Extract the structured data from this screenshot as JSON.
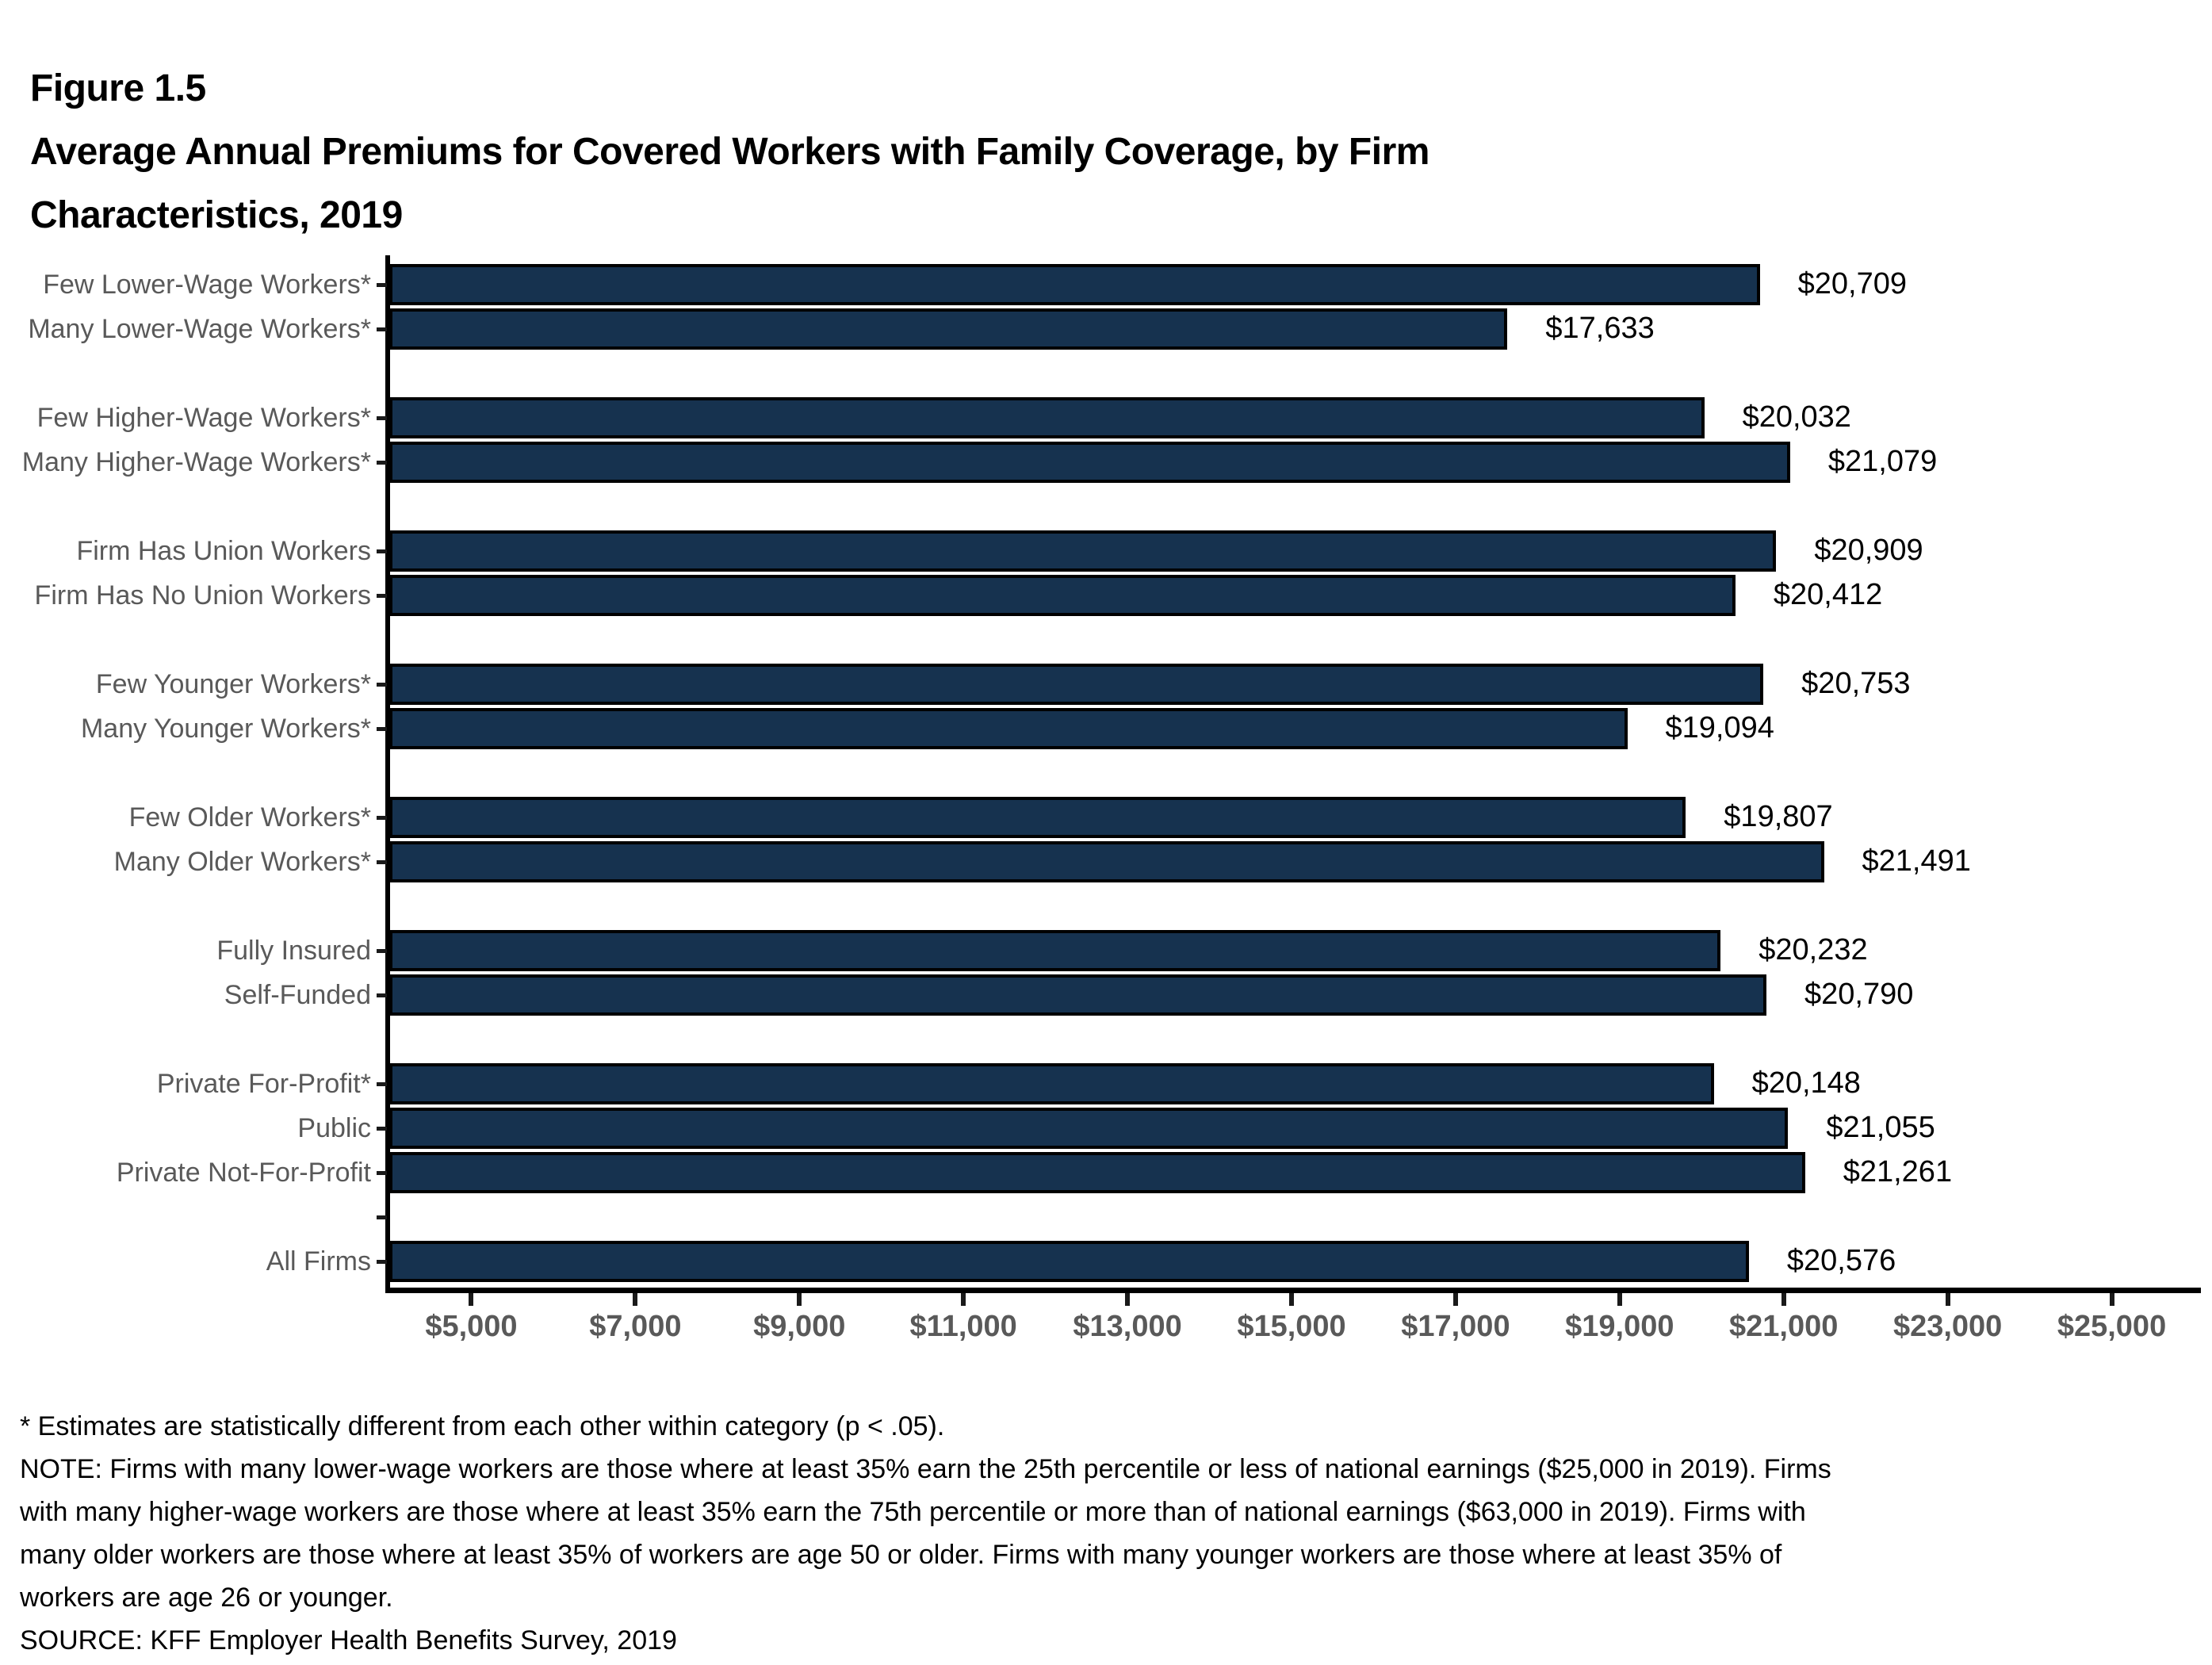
{
  "figure": {
    "label": "Figure 1.5",
    "title_lines": [
      "Average Annual Premiums for Covered Workers with Family Coverage, by Firm",
      "Characteristics, 2019"
    ]
  },
  "chart_data": {
    "type": "bar",
    "orientation": "horizontal",
    "title": "Average Annual Premiums for Covered Workers with Family Coverage, by Firm Characteristics, 2019",
    "xlabel": "",
    "ylabel": "",
    "xlim": [
      4000,
      26000
    ],
    "grid": false,
    "legend": null,
    "bar_color": "#16324F",
    "bar_border_color": "#000000",
    "x_tick_values": [
      5000,
      7000,
      9000,
      11000,
      13000,
      15000,
      17000,
      19000,
      21000,
      23000,
      25000
    ],
    "x_tick_labels": [
      "$5,000",
      "$7,000",
      "$9,000",
      "$11,000",
      "$13,000",
      "$15,000",
      "$17,000",
      "$19,000",
      "$21,000",
      "$23,000",
      "$25,000"
    ],
    "categories": [
      "Few Lower-Wage Workers*",
      "Many Lower-Wage Workers*",
      "Few Higher-Wage Workers*",
      "Many Higher-Wage Workers*",
      "Firm Has Union Workers",
      "Firm Has No Union Workers",
      "Few Younger Workers*",
      "Many Younger Workers*",
      "Few Older Workers*",
      "Many Older Workers*",
      "Fully Insured",
      "Self-Funded",
      "Private For-Profit*",
      "Public",
      "Private Not-For-Profit",
      "All Firms"
    ],
    "values": [
      20709,
      17633,
      20032,
      21079,
      20909,
      20412,
      20753,
      19094,
      19807,
      21491,
      20232,
      20790,
      20148,
      21055,
      21261,
      20576
    ],
    "rows": [
      {
        "label": "Few Lower-Wage Workers*",
        "value": 20709,
        "value_label": "$20,709"
      },
      {
        "label": "Many Lower-Wage Workers*",
        "value": 17633,
        "value_label": "$17,633"
      },
      {
        "gap": true
      },
      {
        "label": "Few Higher-Wage Workers*",
        "value": 20032,
        "value_label": "$20,032"
      },
      {
        "label": "Many Higher-Wage Workers*",
        "value": 21079,
        "value_label": "$21,079"
      },
      {
        "gap": true
      },
      {
        "label": "Firm Has Union Workers",
        "value": 20909,
        "value_label": "$20,909"
      },
      {
        "label": "Firm Has No Union Workers",
        "value": 20412,
        "value_label": "$20,412"
      },
      {
        "gap": true
      },
      {
        "label": "Few Younger Workers*",
        "value": 20753,
        "value_label": "$20,753"
      },
      {
        "label": "Many Younger Workers*",
        "value": 19094,
        "value_label": "$19,094"
      },
      {
        "gap": true
      },
      {
        "label": "Few Older Workers*",
        "value": 19807,
        "value_label": "$19,807"
      },
      {
        "label": "Many Older Workers*",
        "value": 21491,
        "value_label": "$21,491"
      },
      {
        "gap": true
      },
      {
        "label": "Fully Insured",
        "value": 20232,
        "value_label": "$20,232"
      },
      {
        "label": "Self-Funded",
        "value": 20790,
        "value_label": "$20,790"
      },
      {
        "gap": true
      },
      {
        "label": "Private For-Profit*",
        "value": 20148,
        "value_label": "$20,148"
      },
      {
        "label": "Public",
        "value": 21055,
        "value_label": "$21,055"
      },
      {
        "label": "Private Not-For-Profit",
        "value": 21261,
        "value_label": "$21,261"
      },
      {
        "gap": true,
        "tick": true
      },
      {
        "label": "All Firms",
        "value": 20576,
        "value_label": "$20,576"
      }
    ]
  },
  "footnotes": {
    "asterisk_note": "* Estimates are statistically different from each other within category (p < .05).",
    "note_lines": [
      "NOTE: Firms with many lower-wage workers are those where at least 35% earn the 25th percentile or less of national earnings ($25,000 in 2019). Firms",
      "with many higher-wage workers are those where at least 35% earn the 75th percentile or more than of national earnings ($63,000 in 2019). Firms with",
      "many older workers are those where at least 35% of workers are age 50 or older. Firms with many younger workers are those where at least 35% of",
      "workers are age 26 or younger."
    ],
    "source": "SOURCE: KFF Employer Health Benefits Survey, 2019"
  },
  "colors": {
    "bar_fill": "#16324F",
    "bar_border": "#000000",
    "axis_gray": "#595959",
    "text_black": "#000000"
  }
}
